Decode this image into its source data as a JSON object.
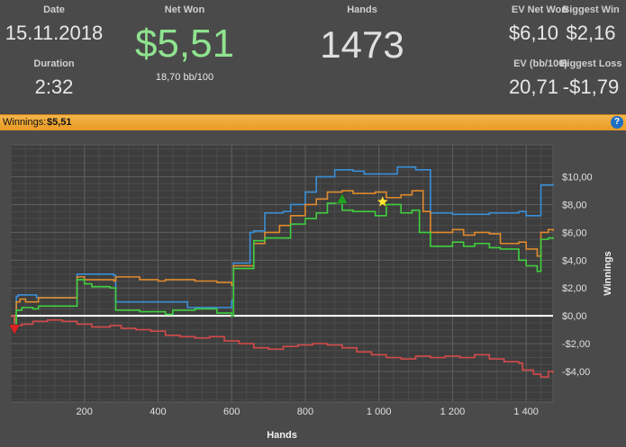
{
  "stats": {
    "date_label": "Date",
    "date_value": "15.11.2018",
    "duration_label": "Duration",
    "duration_value": "2:32",
    "net_won_label": "Net Won",
    "net_won_value": "$5,51",
    "net_won_sub": "18,70 bb/100",
    "hands_label": "Hands",
    "hands_value": "1473",
    "ev_net_won_label": "EV Net Won",
    "ev_net_won_value": "$6,10",
    "biggest_win_label": "Biggest Win",
    "biggest_win_value": "$2,16",
    "ev_bb_label": "EV (bb/100)",
    "ev_bb_value": "20,71",
    "biggest_loss_label": "Biggest Loss",
    "biggest_loss_value": "-$1,79"
  },
  "banner": {
    "label": "Winnings:",
    "value": "$5,51",
    "help": "?"
  },
  "colors": {
    "net_won_green": "#8fe38f",
    "blue": "#3a8fd8",
    "orange": "#e08a2e",
    "green": "#3fcf3f",
    "red": "#d44a4a",
    "banner": "#f0a83a"
  },
  "chart_data": {
    "type": "line",
    "xlabel": "Hands",
    "ylabel": "Winnings",
    "xlim": [
      0,
      1473
    ],
    "ylim": [
      -6.2,
      12.3
    ],
    "x_ticks": [
      200,
      400,
      600,
      800,
      1000,
      1200,
      1400
    ],
    "x_tick_labels": [
      "200",
      "400",
      "600",
      "800",
      "1 000",
      "1 200",
      "1 400"
    ],
    "y_ticks": [
      10,
      8,
      6,
      4,
      2,
      0,
      -2,
      -4
    ],
    "y_tick_labels": [
      "$10,00",
      "$8,00",
      "$6,00",
      "$4,00",
      "$2,00",
      "$0,00",
      "-$2,00",
      "-$4,00"
    ],
    "grid": true,
    "series": [
      {
        "color": "#3a8fd8",
        "x": [
          0,
          10,
          15,
          20,
          70,
          180,
          200,
          280,
          285,
          480,
          600,
          605,
          650,
          660,
          690,
          740,
          760,
          800,
          830,
          880,
          930,
          960,
          1050,
          1100,
          1140,
          1200,
          1300,
          1380,
          1400,
          1440,
          1473
        ],
        "y": [
          0,
          -0.3,
          1.4,
          1.5,
          1.3,
          3.0,
          3.0,
          2.9,
          1.0,
          0.6,
          1.1,
          3.8,
          6.0,
          6.1,
          7.4,
          7.5,
          8.0,
          8.9,
          10.0,
          10.5,
          10.4,
          10.2,
          10.7,
          10.5,
          7.4,
          7.3,
          7.4,
          7.5,
          7.2,
          9.4,
          9.5
        ]
      },
      {
        "color": "#e08a2e",
        "x": [
          0,
          10,
          15,
          25,
          40,
          75,
          180,
          200,
          280,
          285,
          350,
          400,
          420,
          500,
          560,
          600,
          605,
          660,
          690,
          730,
          760,
          800,
          830,
          860,
          900,
          930,
          990,
          1020,
          1060,
          1090,
          1120,
          1140,
          1200,
          1230,
          1260,
          1300,
          1330,
          1380,
          1400,
          1430,
          1440,
          1460,
          1473
        ],
        "y": [
          0,
          -0.3,
          1.0,
          1.2,
          1.0,
          1.3,
          2.8,
          2.6,
          2.5,
          2.8,
          2.6,
          2.5,
          2.6,
          2.5,
          2.4,
          2.2,
          3.6,
          5.2,
          6.0,
          6.5,
          7.2,
          8.0,
          8.4,
          8.9,
          9.0,
          8.8,
          8.9,
          8.5,
          8.7,
          9.0,
          7.5,
          6.0,
          6.2,
          5.8,
          6.0,
          5.9,
          5.2,
          5.3,
          4.8,
          4.3,
          6.0,
          6.2,
          6.1
        ]
      },
      {
        "color": "#3fcf3f",
        "x": [
          0,
          10,
          15,
          30,
          60,
          75,
          180,
          200,
          220,
          270,
          285,
          350,
          420,
          440,
          500,
          560,
          600,
          605,
          660,
          690,
          760,
          800,
          830,
          860,
          900,
          930,
          990,
          1020,
          1060,
          1090,
          1110,
          1140,
          1200,
          1230,
          1260,
          1300,
          1330,
          1380,
          1400,
          1430,
          1440,
          1460,
          1473
        ],
        "y": [
          0,
          -0.7,
          0.4,
          0.6,
          0.5,
          0.7,
          2.6,
          2.3,
          2.1,
          2.0,
          0.4,
          0.3,
          0.1,
          0.4,
          0.5,
          0.2,
          0.0,
          3.4,
          5.4,
          5.6,
          6.6,
          7.0,
          7.4,
          8.1,
          7.6,
          7.5,
          7.2,
          8.0,
          7.4,
          7.6,
          6.0,
          5.0,
          5.3,
          5.0,
          5.2,
          4.9,
          4.8,
          4.0,
          3.6,
          3.2,
          5.5,
          5.6,
          5.5
        ]
      },
      {
        "color": "#d44a4a",
        "x": [
          0,
          10,
          30,
          60,
          100,
          140,
          180,
          220,
          270,
          300,
          340,
          380,
          420,
          460,
          500,
          540,
          580,
          620,
          660,
          700,
          740,
          780,
          820,
          860,
          900,
          940,
          980,
          1020,
          1060,
          1100,
          1140,
          1180,
          1220,
          1260,
          1300,
          1340,
          1380,
          1390,
          1420,
          1440,
          1460,
          1473
        ],
        "y": [
          0,
          -0.7,
          -0.6,
          -0.4,
          -0.3,
          -0.4,
          -0.6,
          -0.8,
          -0.7,
          -0.9,
          -1.0,
          -1.1,
          -1.4,
          -1.5,
          -1.6,
          -1.5,
          -1.8,
          -2.0,
          -2.3,
          -2.4,
          -2.2,
          -2.1,
          -2.0,
          -2.1,
          -2.3,
          -2.6,
          -2.8,
          -3.0,
          -3.1,
          -2.9,
          -3.0,
          -2.9,
          -3.0,
          -2.8,
          -3.1,
          -3.3,
          -3.4,
          -3.9,
          -4.2,
          -4.4,
          -4.0,
          -4.1
        ]
      }
    ],
    "markers": [
      {
        "name": "triangle-down",
        "x": 10,
        "y": -0.95,
        "color": "#e02020"
      },
      {
        "name": "triangle-up",
        "x": 900,
        "y": 8.4,
        "color": "#1ea31e"
      },
      {
        "name": "star",
        "x": 1010,
        "y": 8.2,
        "color": "#ffe433"
      }
    ]
  }
}
